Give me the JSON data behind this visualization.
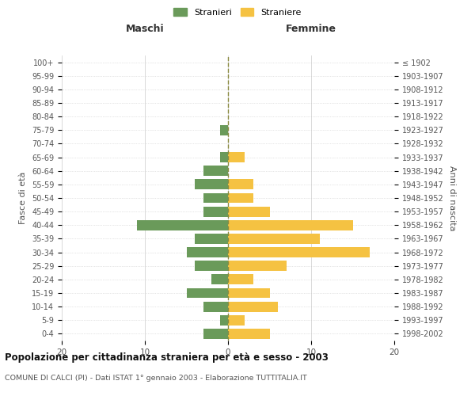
{
  "age_groups": [
    "0-4",
    "5-9",
    "10-14",
    "15-19",
    "20-24",
    "25-29",
    "30-34",
    "35-39",
    "40-44",
    "45-49",
    "50-54",
    "55-59",
    "60-64",
    "65-69",
    "70-74",
    "75-79",
    "80-84",
    "85-89",
    "90-94",
    "95-99",
    "100+"
  ],
  "birth_years": [
    "1998-2002",
    "1993-1997",
    "1988-1992",
    "1983-1987",
    "1978-1982",
    "1973-1977",
    "1968-1972",
    "1963-1967",
    "1958-1962",
    "1953-1957",
    "1948-1952",
    "1943-1947",
    "1938-1942",
    "1933-1937",
    "1928-1932",
    "1923-1927",
    "1918-1922",
    "1913-1917",
    "1908-1912",
    "1903-1907",
    "≤ 1902"
  ],
  "maschi": [
    3,
    1,
    3,
    5,
    2,
    4,
    5,
    4,
    11,
    3,
    3,
    4,
    3,
    1,
    0,
    1,
    0,
    0,
    0,
    0,
    0
  ],
  "femmine": [
    5,
    2,
    6,
    5,
    3,
    7,
    17,
    11,
    15,
    5,
    3,
    3,
    0,
    2,
    0,
    0,
    0,
    0,
    0,
    0,
    0
  ],
  "maschi_color": "#6a9a5a",
  "femmine_color": "#f5c242",
  "title": "Popolazione per cittadinanza straniera per età e sesso - 2003",
  "subtitle": "COMUNE DI CALCI (PI) - Dati ISTAT 1° gennaio 2003 - Elaborazione TUTTITALIA.IT",
  "ylabel_left": "Fasce di età",
  "ylabel_right": "Anni di nascita",
  "xlabel_left": "Maschi",
  "xlabel_right": "Femmine",
  "legend_maschi": "Stranieri",
  "legend_femmine": "Straniere",
  "xlim": 20,
  "background_color": "#ffffff",
  "grid_color": "#cccccc",
  "dashed_line_color": "#8a8a40"
}
